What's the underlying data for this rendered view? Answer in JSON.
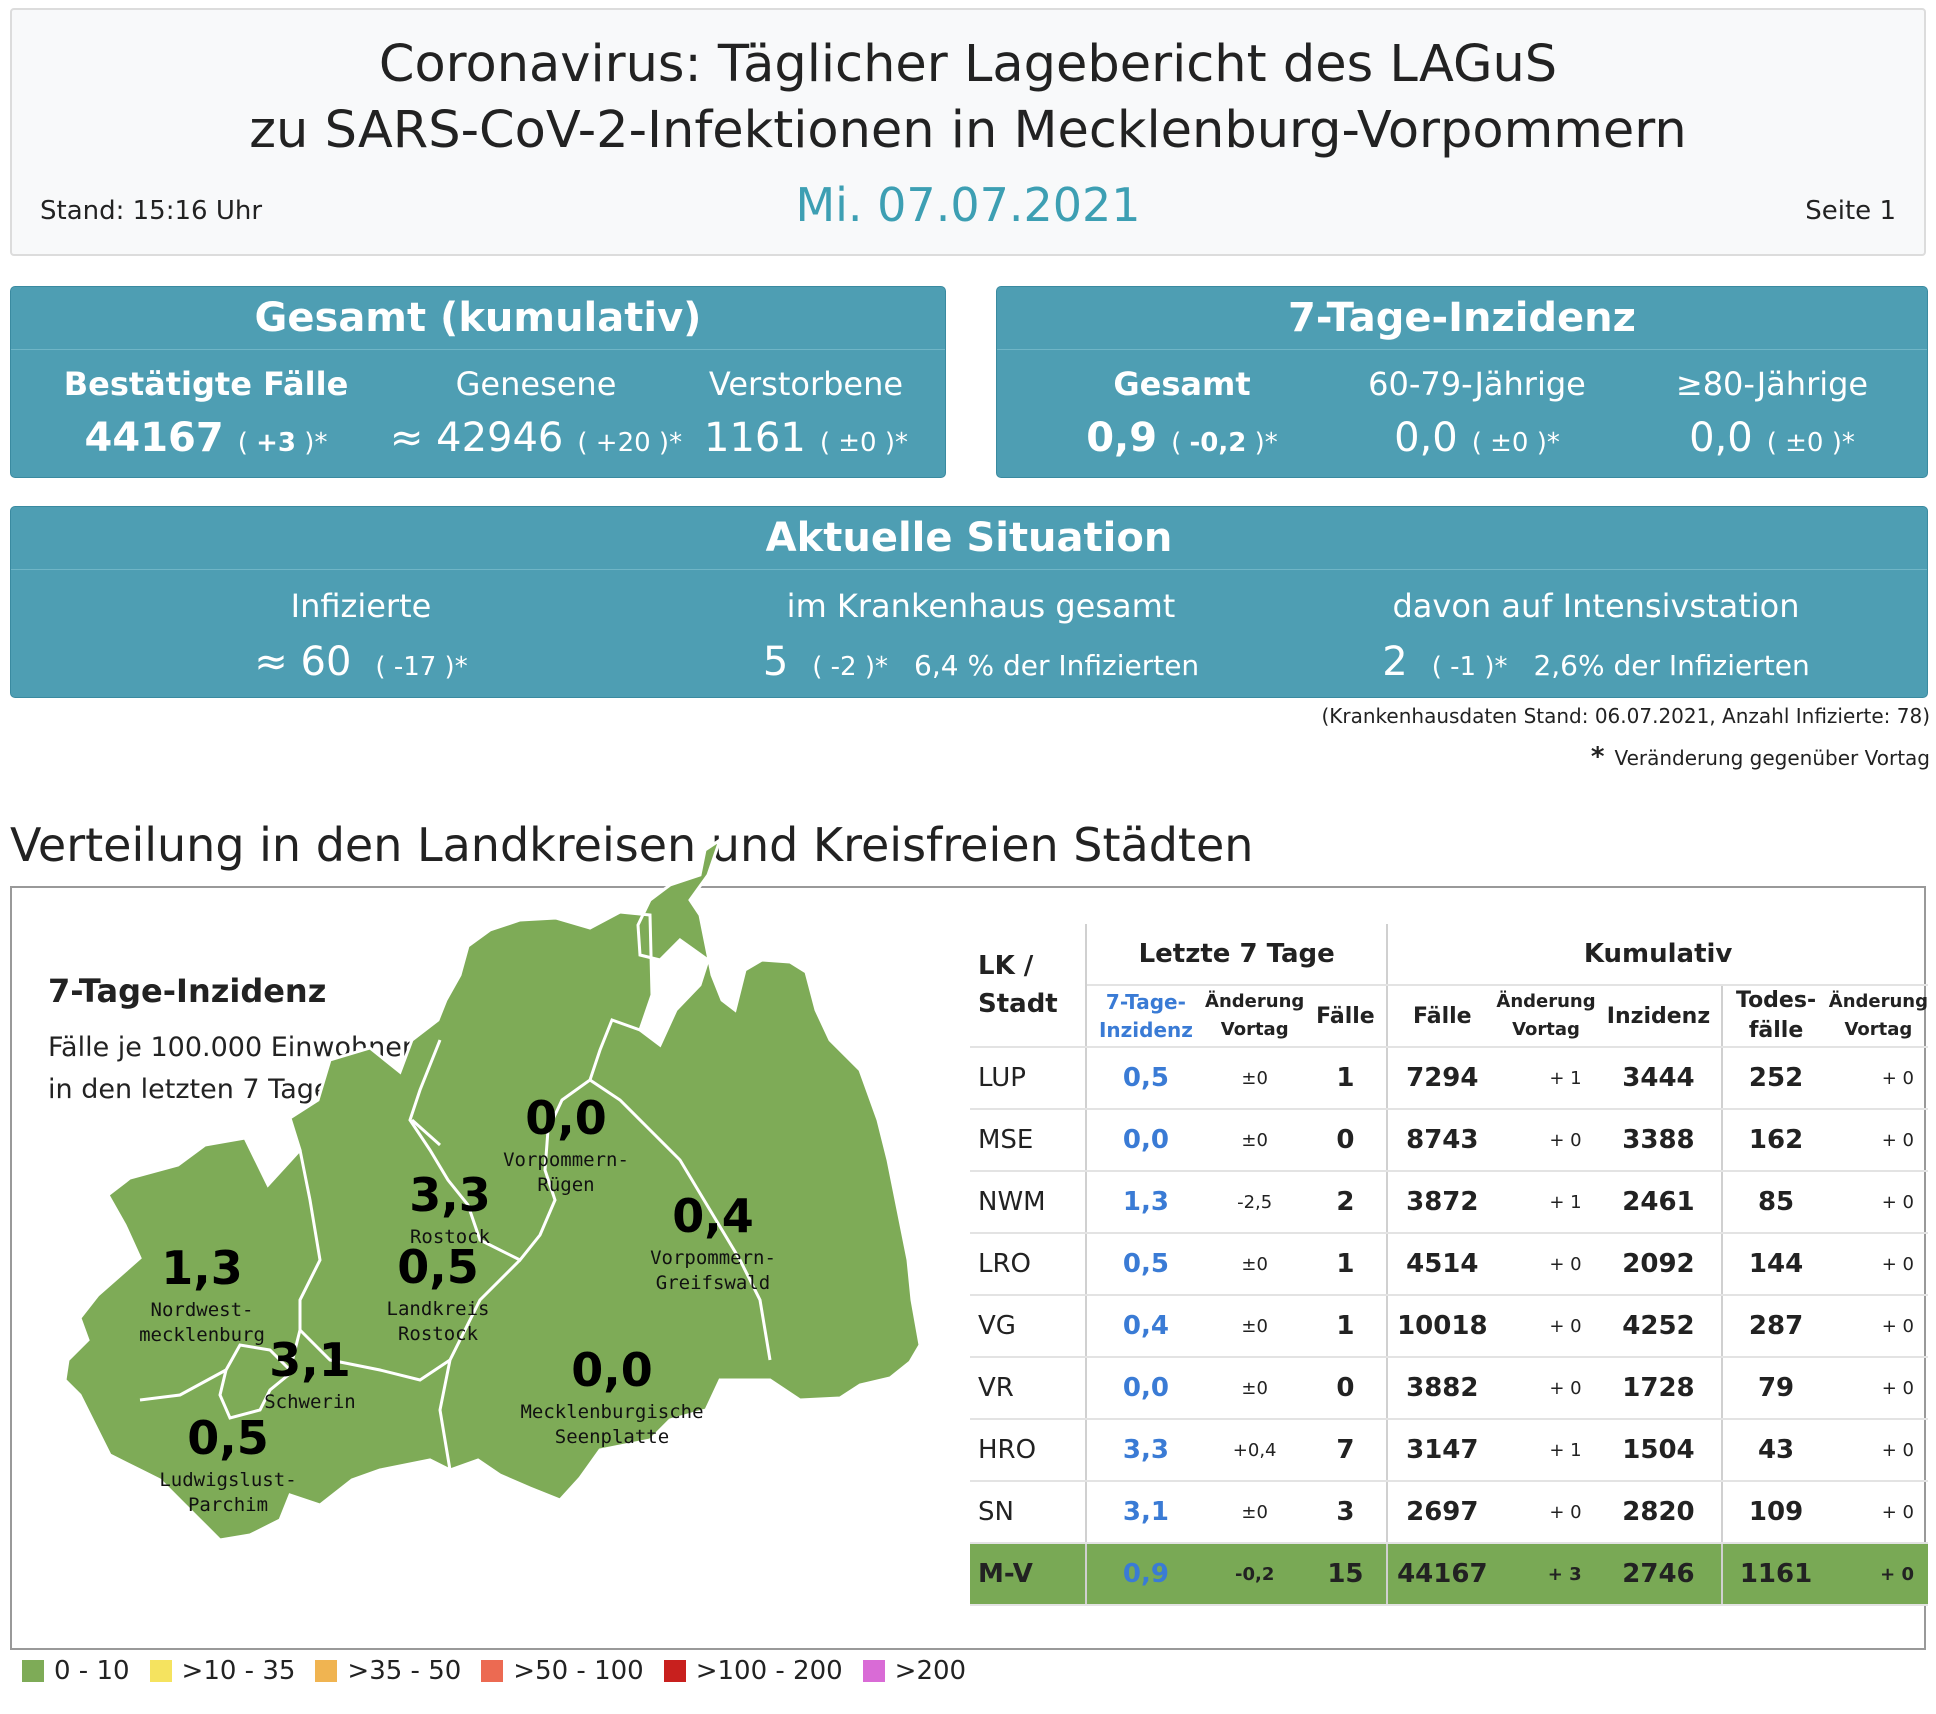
{
  "header": {
    "title_line1": "Coronavirus: Täglicher Lagebericht des LAGuS",
    "title_line2": "zu SARS-CoV-2-Infektionen in Mecklenburg-Vorpommern",
    "date": "Mi. 07.07.2021",
    "stand": "Stand: 15:16 Uhr",
    "seite": "Seite 1"
  },
  "gesamt": {
    "title": "Gesamt (kumulativ)",
    "bestaetigt": {
      "label": "Bestätigte Fälle",
      "value": "44167",
      "change_pre": "( ",
      "change": "+3",
      "change_post": " )*"
    },
    "genesene": {
      "label": "Genesene",
      "value": "≈ 42946",
      "change": "( +20 )*"
    },
    "verstorbene": {
      "label": "Verstorbene",
      "value": "1161",
      "change": "( ±0 )*"
    }
  },
  "inzidenz": {
    "title": "7-Tage-Inzidenz",
    "gesamt": {
      "label": "Gesamt",
      "value": "0,9",
      "change_pre": "( ",
      "change": "-0,2",
      "change_post": " )*"
    },
    "age60": {
      "label": "60-79-Jährige",
      "value": "0,0",
      "change": "( ±0 )*"
    },
    "age80": {
      "label": "≥80-Jährige",
      "value": "0,0",
      "change": "( ±0 )*"
    }
  },
  "aktuell": {
    "title": "Aktuelle Situation",
    "infizierte": {
      "label": "Infizierte",
      "value": "≈ 60",
      "change": "( -17 )*"
    },
    "krankenhaus": {
      "label": "im Krankenhaus gesamt",
      "value": "5",
      "change": "( -2 )*",
      "pct": "6,4 % der Infizierten"
    },
    "intensiv": {
      "label": "davon auf Intensivstation",
      "value": "2",
      "change": "( -1 )*",
      "pct": "2,6% der Infizierten"
    }
  },
  "notes": {
    "krankenhaus": "(Krankenhausdaten Stand: 06.07.2021, Anzahl Infizierte: 78)",
    "star": "*",
    "veraenderung": "Veränderung gegenüber Vortag"
  },
  "section_title": "Verteilung in den Landkreisen und Kreisfreien Städten",
  "map": {
    "title": "7-Tage-Inzidenz",
    "sub1": "Fälle je 100.000 Einwohner (EW)",
    "sub2": "in den letzten 7 Tagen",
    "fill": "#7eab57",
    "regions": [
      {
        "value": "0,0",
        "name1": "Vorpommern-",
        "name2": "Rügen"
      },
      {
        "value": "3,3",
        "name1": "Rostock",
        "name2": ""
      },
      {
        "value": "0,4",
        "name1": "Vorpommern-",
        "name2": "Greifswald"
      },
      {
        "value": "0,5",
        "name1": "Landkreis",
        "name2": "Rostock"
      },
      {
        "value": "1,3",
        "name1": "Nordwest-",
        "name2": "mecklenburg"
      },
      {
        "value": "3,1",
        "name1": "Schwerin",
        "name2": ""
      },
      {
        "value": "0,0",
        "name1": "Mecklenburgische",
        "name2": "Seenplatte"
      },
      {
        "value": "0,5",
        "name1": "Ludwigslust-",
        "name2": "Parchim"
      }
    ]
  },
  "table": {
    "h_lk1": "LK /",
    "h_lk2": "Stadt",
    "h_letzte": "Letzte 7 Tage",
    "h_kumulativ": "Kumulativ",
    "h_inz1": "7-Tage-",
    "h_inz2": "Inzidenz",
    "h_aend1": "Änderung",
    "h_aend2": "Vortag",
    "h_faelle": "Fälle",
    "h_inzidenz": "Inzidenz",
    "h_tod1": "Todes-",
    "h_tod2": "fälle",
    "rows": [
      {
        "lk": "LUP",
        "inz": "0,5",
        "ch": "±0",
        "f7": "1",
        "faelle": "7294",
        "fch": "+ 1",
        "kinz": "3444",
        "tod": "252",
        "tch": "+ 0"
      },
      {
        "lk": "MSE",
        "inz": "0,0",
        "ch": "±0",
        "f7": "0",
        "faelle": "8743",
        "fch": "+ 0",
        "kinz": "3388",
        "tod": "162",
        "tch": "+ 0"
      },
      {
        "lk": "NWM",
        "inz": "1,3",
        "ch": "-2,5",
        "f7": "2",
        "faelle": "3872",
        "fch": "+ 1",
        "kinz": "2461",
        "tod": "85",
        "tch": "+ 0"
      },
      {
        "lk": "LRO",
        "inz": "0,5",
        "ch": "±0",
        "f7": "1",
        "faelle": "4514",
        "fch": "+ 0",
        "kinz": "2092",
        "tod": "144",
        "tch": "+ 0"
      },
      {
        "lk": "VG",
        "inz": "0,4",
        "ch": "±0",
        "f7": "1",
        "faelle": "10018",
        "fch": "+ 0",
        "kinz": "4252",
        "tod": "287",
        "tch": "+ 0"
      },
      {
        "lk": "VR",
        "inz": "0,0",
        "ch": "±0",
        "f7": "0",
        "faelle": "3882",
        "fch": "+ 0",
        "kinz": "1728",
        "tod": "79",
        "tch": "+ 0"
      },
      {
        "lk": "HRO",
        "inz": "3,3",
        "ch": "+0,4",
        "f7": "7",
        "faelle": "3147",
        "fch": "+ 1",
        "kinz": "1504",
        "tod": "43",
        "tch": "+ 0"
      },
      {
        "lk": "SN",
        "inz": "3,1",
        "ch": "±0",
        "f7": "3",
        "faelle": "2697",
        "fch": "+ 0",
        "kinz": "2820",
        "tod": "109",
        "tch": "+ 0"
      }
    ],
    "total": {
      "lk": "M-V",
      "inz": "0,9",
      "ch": "-0,2",
      "f7": "15",
      "faelle": "44167",
      "fch": "+ 3",
      "kinz": "2746",
      "tod": "1161",
      "tch": "+ 0"
    }
  },
  "legend": [
    {
      "label": "0 - 10",
      "color": "#7eab57"
    },
    {
      "label": ">10 - 35",
      "color": "#f5e35f"
    },
    {
      "label": ">35 - 50",
      "color": "#f0b451"
    },
    {
      "label": ">50 - 100",
      "color": "#ec6a52"
    },
    {
      "label": ">100 - 200",
      "color": "#c8201e"
    },
    {
      "label": ">200",
      "color": "#d96bd6"
    }
  ]
}
